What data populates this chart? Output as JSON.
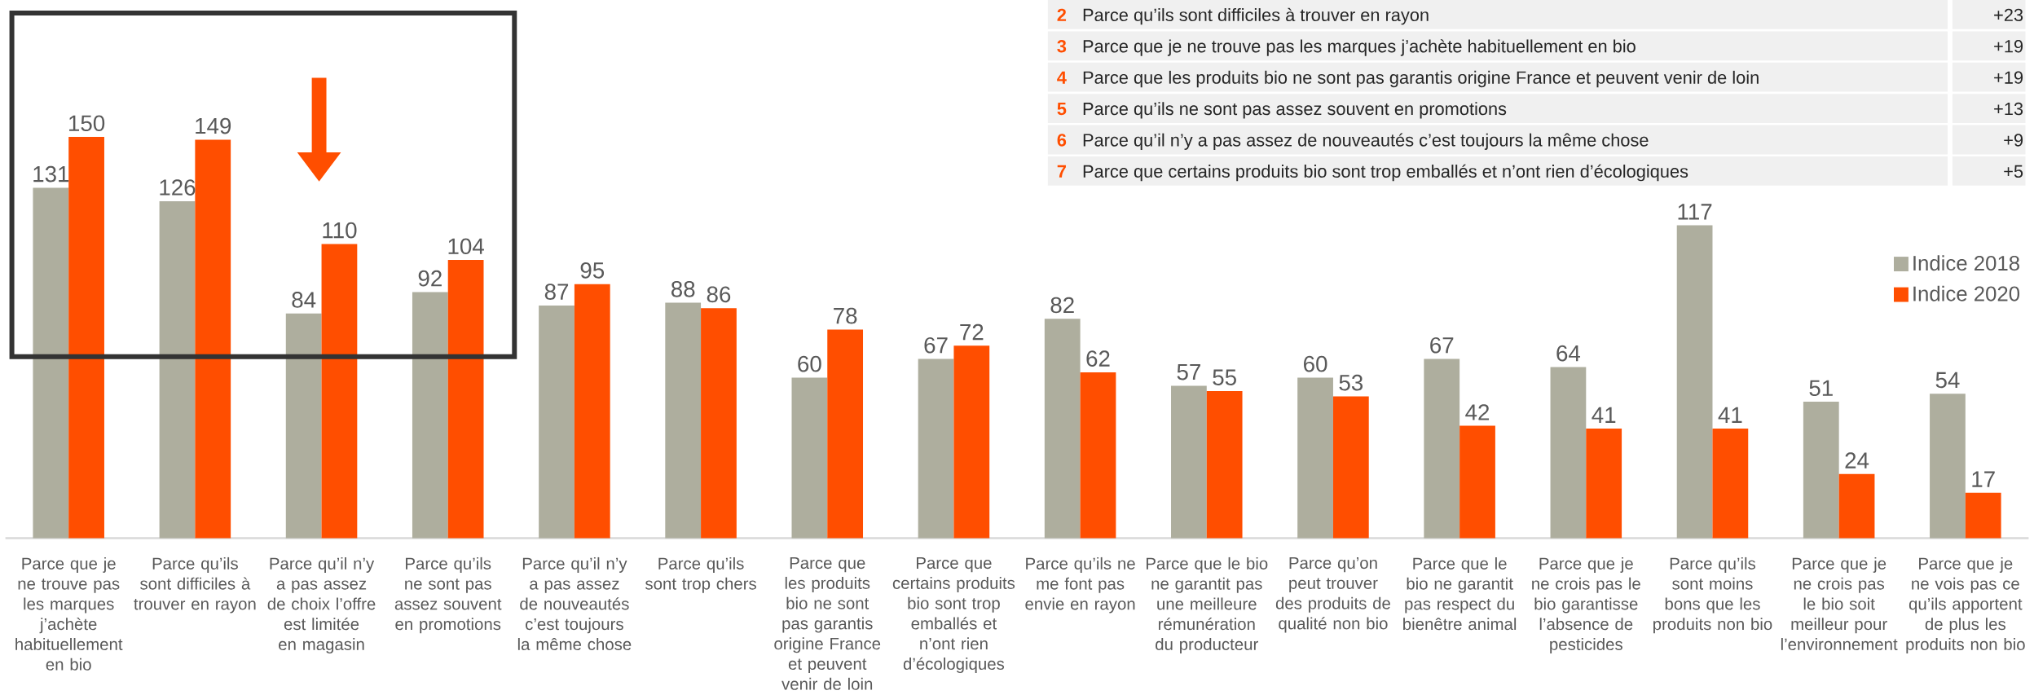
{
  "chart_data": {
    "type": "bar",
    "categories": [
      "Parce que je ne trouve pas les marques j’achète habituellement en bio",
      "Parce qu’ils sont difficiles à trouver en rayon",
      "Parce qu’il n’y a pas assez de choix l’offre est limitée en magasin",
      "Parce qu’ils ne sont pas assez souvent en promotions",
      "Parce qu’il n’y a pas assez de nouveautés c’est toujours la même chose",
      "Parce qu’ils sont trop chers",
      "Parce que les produits bio ne sont pas garantis origine France et peuvent venir de loin",
      "Parce que certains produits bio sont trop emballés et n’ont rien d’écologiques",
      "Parce qu’ils ne me font pas envie en rayon",
      "Parce que le bio ne garantit pas une meilleure rémunération du producteur",
      "Parce qu’on peut trouver des produits de qualité non bio",
      "Parce que le bio ne garantit pas respect du bienêtre animal",
      "Parce que je ne crois pas le bio garantisse l’absence de pesticides",
      "Parce qu’ils sont moins bons que les produits non bio",
      "Parce que je ne crois pas le bio soit meilleur pour l’environnement",
      "Parce que je ne vois pas ce qu’ils apportent de plus les produits non bio"
    ],
    "series": [
      {
        "name": "Indice 2018",
        "color": "#aeae9e",
        "values": [
          131,
          126,
          84,
          92,
          87,
          88,
          60,
          67,
          82,
          57,
          60,
          67,
          64,
          117,
          51,
          54
        ]
      },
      {
        "name": "Indice 2020",
        "color": "#ff4e00",
        "values": [
          150,
          149,
          110,
          104,
          95,
          86,
          78,
          72,
          62,
          55,
          53,
          42,
          41,
          41,
          24,
          17
        ]
      }
    ],
    "data_labels": true,
    "legend": "right",
    "annotations": [
      "2",
      "Parce qu’ils sont difficiles à trouver en rayon",
      "+23",
      "3",
      "Parce que je ne trouve pas les marques j’achète habituellement en bio",
      "+19",
      "4",
      "Parce que les produits bio ne sont pas garantis origine France et peuvent venir de loin",
      "+19",
      "5",
      "Parce qu’ils ne sont pas assez souvent en promotions",
      "+13",
      "6",
      "Parce qu’il n’y a pas assez de nouveautés c’est toujours la même chose",
      "+9",
      "7",
      "Parce que certains produits bio sont trop emballés et n’ont rien d’écologiques",
      "+5"
    ]
  }
}
